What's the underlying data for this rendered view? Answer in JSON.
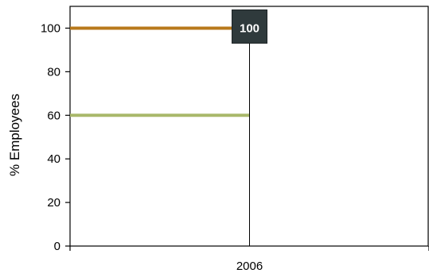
{
  "chart_data": {
    "type": "line",
    "title": "",
    "xlabel": "",
    "ylabel": "% Employees",
    "categories": [
      "2006"
    ],
    "ylim": [
      0,
      110
    ],
    "yticks": [
      0,
      20,
      40,
      60,
      80,
      100
    ],
    "grid": false,
    "legend": "none",
    "series": [
      {
        "values": [
          100
        ],
        "color": "#b8791b"
      },
      {
        "values": [
          60
        ],
        "color": "#a9b86a"
      }
    ],
    "annotations": [
      {
        "category": "2006",
        "value": 100,
        "text": "100",
        "box_color": "#2f3a3c"
      }
    ]
  }
}
